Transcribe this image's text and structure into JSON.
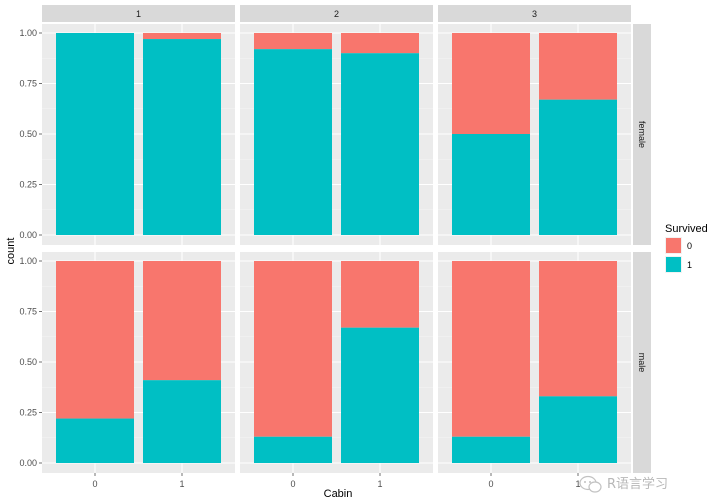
{
  "chart_data": {
    "type": "bar",
    "stacked": true,
    "xlabel": "Cabin",
    "ylabel": "count",
    "ylim": [
      0,
      1
    ],
    "yticks": [
      "0.00",
      "0.25",
      "0.50",
      "0.75",
      "1.00"
    ],
    "facet_cols": [
      "1",
      "2",
      "3"
    ],
    "facet_rows": [
      "female",
      "male"
    ],
    "categories": [
      "0",
      "1"
    ],
    "legend": {
      "title": "Survived",
      "position": "right",
      "entries": [
        "0",
        "1"
      ]
    },
    "colors": {
      "0": "#f8766d",
      "1": "#00bfc4"
    },
    "grid": true,
    "panels": [
      {
        "col": "1",
        "row": "female",
        "survived_1": [
          1.0,
          0.97
        ]
      },
      {
        "col": "2",
        "row": "female",
        "survived_1": [
          0.92,
          0.9
        ]
      },
      {
        "col": "3",
        "row": "female",
        "survived_1": [
          0.5,
          0.67
        ]
      },
      {
        "col": "1",
        "row": "male",
        "survived_1": [
          0.22,
          0.41
        ]
      },
      {
        "col": "2",
        "row": "male",
        "survived_1": [
          0.13,
          0.67
        ]
      },
      {
        "col": "3",
        "row": "male",
        "survived_1": [
          0.13,
          0.33
        ]
      }
    ]
  },
  "watermark": {
    "text": "R语言学习"
  }
}
